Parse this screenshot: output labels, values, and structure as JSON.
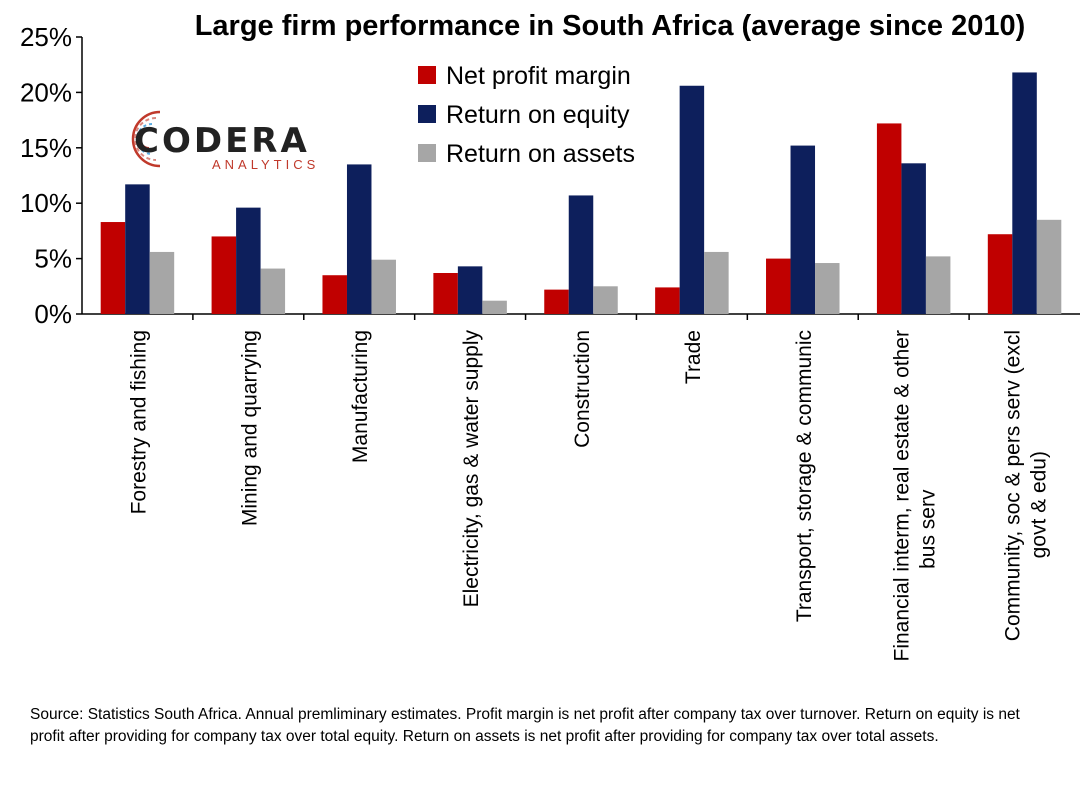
{
  "chart_data": {
    "type": "bar",
    "title": "Large firm performance in South Africa (average since 2010)",
    "categories": [
      [
        "Forestry and fishing"
      ],
      [
        "Mining and quarrying"
      ],
      [
        "Manufacturing"
      ],
      [
        "Electricity, gas & water supply"
      ],
      [
        "Construction"
      ],
      [
        "Trade"
      ],
      [
        "Transport, storage & communic"
      ],
      [
        "Financial interm, real estate & other",
        "bus serv"
      ],
      [
        "Community, soc & pers serv  (excl",
        "govt & edu)"
      ]
    ],
    "series": [
      {
        "name": "Net profit margin",
        "color": "#c00000",
        "values": [
          8.3,
          7.0,
          3.5,
          3.7,
          2.2,
          2.4,
          5.0,
          17.2,
          7.2
        ]
      },
      {
        "name": "Return on equity",
        "color": "#0d1f5c",
        "values": [
          11.7,
          9.6,
          13.5,
          4.3,
          10.7,
          20.6,
          15.2,
          13.6,
          21.8
        ]
      },
      {
        "name": "Return on assets",
        "color": "#a6a6a6",
        "values": [
          5.6,
          4.1,
          4.9,
          1.2,
          2.5,
          5.6,
          4.6,
          5.2,
          8.5
        ]
      }
    ],
    "yticks": [
      "0%",
      "5%",
      "10%",
      "15%",
      "20%",
      "25%"
    ],
    "ylim": [
      0,
      25
    ],
    "grid": false,
    "legend_position": "top-center"
  },
  "logo": {
    "name": "CODERA",
    "tagline": "ANALYTICS"
  },
  "source_note": "Source: Statistics South Africa. Annual premliminary estimates. Profit margin is net profit after company tax over turnover. Return on equity is net profit after providing for company tax over total equity. Return on assets is net profit after providing for company tax over total assets."
}
